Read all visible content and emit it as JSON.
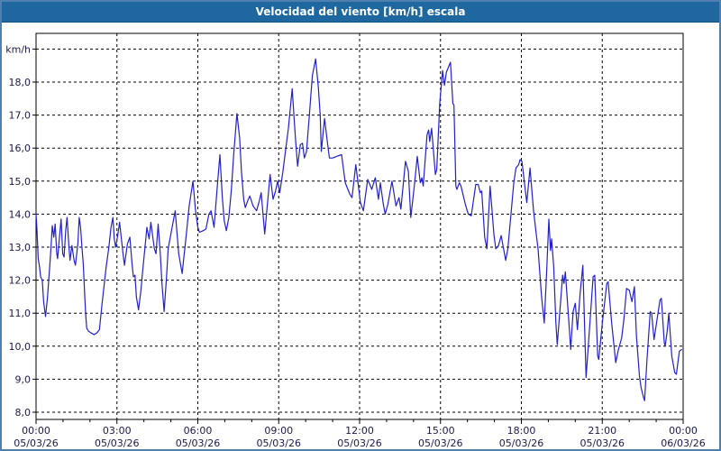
{
  "title": "Velocidad del viento [km/h] escala",
  "colors": {
    "titlebar_bg": "#1e689f",
    "window_border": "#4f80b0",
    "plot_bg": "#ffffff",
    "grid": "#000000",
    "frame": "#000000",
    "axis_label": "#1a1a4e",
    "line": "#2121c8",
    "title_text": "#ffffff"
  },
  "chart_data": {
    "type": "line",
    "title": "Velocidad del viento [km/h] escala",
    "ylabel": "km/h",
    "xlabel": "",
    "ylim": [
      8,
      19
    ],
    "xlim_hours": [
      0,
      24
    ],
    "grid": "dashed",
    "legend_position": "none",
    "y_ticks": [
      {
        "value": 19,
        "label": "km/h"
      },
      {
        "value": 18,
        "label": "18,0"
      },
      {
        "value": 17,
        "label": "17,0"
      },
      {
        "value": 16,
        "label": "16,0"
      },
      {
        "value": 15,
        "label": "15,0"
      },
      {
        "value": 14,
        "label": "14,0"
      },
      {
        "value": 13,
        "label": "13,0"
      },
      {
        "value": 12,
        "label": "12,0"
      },
      {
        "value": 11,
        "label": "11,0"
      },
      {
        "value": 10,
        "label": "10,0"
      },
      {
        "value": 9,
        "label": "9,0"
      },
      {
        "value": 8,
        "label": "8,0"
      }
    ],
    "x_ticks": [
      {
        "hour": 0,
        "time": "00:00",
        "date": "05/03/26"
      },
      {
        "hour": 3,
        "time": "03:00",
        "date": "05/03/26"
      },
      {
        "hour": 6,
        "time": "06:00",
        "date": "05/03/26"
      },
      {
        "hour": 9,
        "time": "09:00",
        "date": "05/03/26"
      },
      {
        "hour": 12,
        "time": "12:00",
        "date": "05/03/26"
      },
      {
        "hour": 15,
        "time": "15:00",
        "date": "05/03/26"
      },
      {
        "hour": 18,
        "time": "18:00",
        "date": "05/03/26"
      },
      {
        "hour": 21,
        "time": "21:00",
        "date": "05/03/26"
      },
      {
        "hour": 24,
        "time": "00:00",
        "date": "06/03/26"
      }
    ],
    "series": [
      {
        "name": "Velocidad del viento",
        "unit": "km/h",
        "color": "#2121c8",
        "x_hours": [
          0.0,
          0.03,
          0.08,
          0.13,
          0.17,
          0.23,
          0.28,
          0.35,
          0.42,
          0.5,
          0.55,
          0.6,
          0.66,
          0.71,
          0.77,
          0.8,
          0.88,
          0.93,
          0.99,
          1.04,
          1.1,
          1.15,
          1.22,
          1.26,
          1.33,
          1.41,
          1.46,
          1.55,
          1.6,
          1.65,
          1.7,
          1.75,
          1.8,
          1.84,
          1.88,
          1.95,
          2.05,
          2.15,
          2.25,
          2.35,
          2.45,
          2.6,
          2.7,
          2.78,
          2.85,
          2.9,
          2.95,
          3.03,
          3.1,
          3.22,
          3.28,
          3.39,
          3.48,
          3.56,
          3.61,
          3.67,
          3.72,
          3.8,
          3.89,
          3.95,
          4.04,
          4.11,
          4.19,
          4.26,
          4.34,
          4.39,
          4.45,
          4.53,
          4.62,
          4.67,
          4.75,
          4.84,
          4.9,
          5.0,
          5.16,
          5.29,
          5.42,
          5.57,
          5.68,
          5.82,
          5.91,
          6.0,
          6.06,
          6.2,
          6.3,
          6.41,
          6.49,
          6.6,
          6.72,
          6.82,
          6.91,
          6.98,
          7.06,
          7.15,
          7.24,
          7.33,
          7.45,
          7.55,
          7.62,
          7.7,
          7.76,
          7.85,
          7.93,
          8.05,
          8.18,
          8.28,
          8.35,
          8.48,
          8.58,
          8.68,
          8.79,
          8.88,
          8.96,
          9.04,
          9.15,
          9.25,
          9.36,
          9.5,
          9.62,
          9.7,
          9.8,
          9.88,
          9.95,
          10.03,
          10.14,
          10.25,
          10.37,
          10.47,
          10.54,
          10.58,
          10.7,
          10.81,
          10.88,
          11.0,
          11.15,
          11.33,
          11.47,
          11.64,
          11.72,
          11.86,
          12.03,
          12.14,
          12.3,
          12.45,
          12.58,
          12.7,
          12.77,
          12.88,
          12.95,
          13.05,
          13.2,
          13.35,
          13.46,
          13.53,
          13.7,
          13.81,
          13.9,
          14.03,
          14.14,
          14.25,
          14.31,
          14.36,
          14.5,
          14.56,
          14.6,
          14.67,
          14.81,
          14.86,
          14.97,
          15.08,
          15.15,
          15.22,
          15.37,
          15.46,
          15.5,
          15.57,
          15.61,
          15.7,
          15.76,
          15.92,
          16.03,
          16.14,
          16.31,
          16.4,
          16.48,
          16.53,
          16.64,
          16.72,
          16.84,
          16.98,
          17.05,
          17.15,
          17.25,
          17.42,
          17.5,
          17.61,
          17.72,
          17.8,
          17.9,
          17.95,
          18.02,
          18.2,
          18.32,
          18.45,
          18.55,
          18.62,
          18.75,
          18.85,
          18.93,
          19.02,
          19.08,
          19.12,
          19.2,
          19.28,
          19.33,
          19.44,
          19.53,
          19.58,
          19.63,
          19.72,
          19.78,
          19.83,
          19.92,
          20.0,
          20.08,
          20.18,
          20.28,
          20.4,
          20.55,
          20.66,
          20.72,
          20.83,
          20.87,
          21.0,
          21.17,
          21.22,
          21.35,
          21.5,
          21.6,
          21.72,
          21.8,
          21.9,
          22.0,
          22.1,
          22.19,
          22.27,
          22.38,
          22.44,
          22.53,
          22.57,
          22.66,
          22.78,
          22.83,
          22.92,
          23.03,
          23.14,
          23.19,
          23.3,
          23.33,
          23.41,
          23.47,
          23.58,
          23.69,
          23.75,
          23.86,
          23.94
        ],
        "y_kmh": [
          14.0,
          13.6,
          12.65,
          12.4,
          12.1,
          12.0,
          11.35,
          10.9,
          11.45,
          12.35,
          12.95,
          13.65,
          13.3,
          13.7,
          12.8,
          12.65,
          13.4,
          13.85,
          12.8,
          12.7,
          13.5,
          13.9,
          13.0,
          12.6,
          13.05,
          12.6,
          12.45,
          13.1,
          13.9,
          13.6,
          13.0,
          12.5,
          11.65,
          11.0,
          10.55,
          10.45,
          10.4,
          10.35,
          10.4,
          10.5,
          11.3,
          12.4,
          13.0,
          13.6,
          13.9,
          13.25,
          13.0,
          13.35,
          13.75,
          12.85,
          12.45,
          13.1,
          13.3,
          12.5,
          12.1,
          12.15,
          11.5,
          11.1,
          11.7,
          12.25,
          13.0,
          13.6,
          13.25,
          13.75,
          13.25,
          12.95,
          12.8,
          13.7,
          12.65,
          11.9,
          11.05,
          12.1,
          12.95,
          13.4,
          14.1,
          12.8,
          12.2,
          13.35,
          14.25,
          15.0,
          14.15,
          13.6,
          13.45,
          13.5,
          13.55,
          14.0,
          14.1,
          13.6,
          14.8,
          15.8,
          14.5,
          13.8,
          13.5,
          13.9,
          14.7,
          15.8,
          17.05,
          16.3,
          15.25,
          14.45,
          14.2,
          14.4,
          14.55,
          14.25,
          14.1,
          14.4,
          14.65,
          13.4,
          14.3,
          15.2,
          14.45,
          14.7,
          15.0,
          14.65,
          15.25,
          15.9,
          16.6,
          17.8,
          16.3,
          15.45,
          16.1,
          16.15,
          15.7,
          15.9,
          17.05,
          18.2,
          18.7,
          17.85,
          17.0,
          15.9,
          16.9,
          16.15,
          15.7,
          15.7,
          15.75,
          15.8,
          14.95,
          14.6,
          14.5,
          15.5,
          14.35,
          14.1,
          15.05,
          14.75,
          15.1,
          14.45,
          14.95,
          14.3,
          14.0,
          14.3,
          15.0,
          14.25,
          14.5,
          14.15,
          15.6,
          15.3,
          13.9,
          14.85,
          15.75,
          14.95,
          15.1,
          14.85,
          16.4,
          16.55,
          16.2,
          16.6,
          15.2,
          15.35,
          17.35,
          18.35,
          17.9,
          18.3,
          18.6,
          17.35,
          17.3,
          14.85,
          14.75,
          14.95,
          14.85,
          14.3,
          14.0,
          13.95,
          14.9,
          14.9,
          14.65,
          14.7,
          13.3,
          12.95,
          14.85,
          13.4,
          12.95,
          13.05,
          13.35,
          12.6,
          12.95,
          13.95,
          14.95,
          15.4,
          15.5,
          15.65,
          15.6,
          14.35,
          15.4,
          14.1,
          13.4,
          12.95,
          11.5,
          10.7,
          12.1,
          13.85,
          12.9,
          13.25,
          12.4,
          10.7,
          10.05,
          11.2,
          12.15,
          11.9,
          12.25,
          11.2,
          10.5,
          9.9,
          11.05,
          11.3,
          10.5,
          11.6,
          12.45,
          9.05,
          10.8,
          12.1,
          12.15,
          9.7,
          9.6,
          10.7,
          11.9,
          11.95,
          10.7,
          9.5,
          9.9,
          10.25,
          10.8,
          11.75,
          11.7,
          11.35,
          11.8,
          10.3,
          9.1,
          8.75,
          8.45,
          8.35,
          9.6,
          11.05,
          11.0,
          10.2,
          10.8,
          11.4,
          11.45,
          10.1,
          10.0,
          10.45,
          11.0,
          9.7,
          9.2,
          9.15,
          9.85,
          9.9
        ]
      }
    ]
  }
}
